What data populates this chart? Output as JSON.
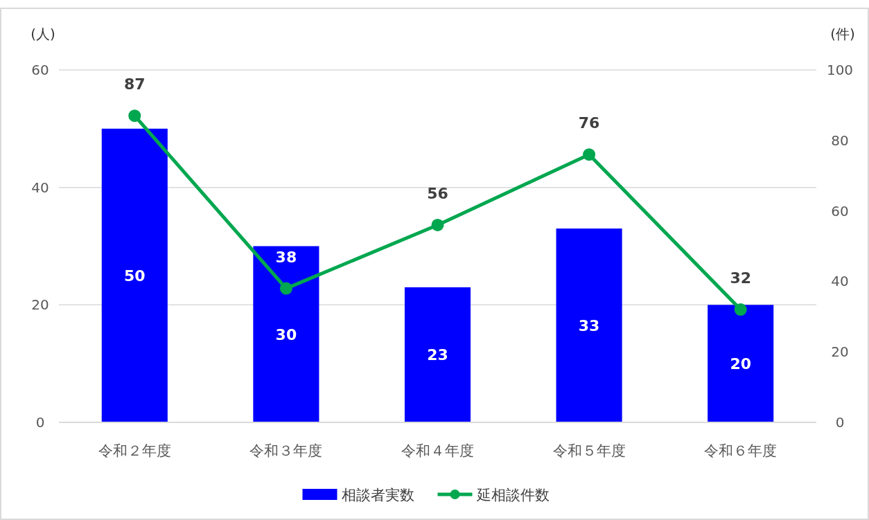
{
  "chart_data": {
    "type": "bar",
    "categories": [
      "令和２年度",
      "令和３年度",
      "令和４年度",
      "令和５年度",
      "令和６年度"
    ],
    "series": [
      {
        "name": "相談者実数",
        "color": "#0000ff",
        "values": [
          50,
          30,
          23,
          33,
          20
        ]
      },
      {
        "name": "延相談件数",
        "type": "line",
        "axis": "y2",
        "color": "#00a74f",
        "values": [
          87,
          38,
          56,
          76,
          32
        ]
      }
    ],
    "ylabel": "(人)",
    "y2label": "(件)",
    "ylim": [
      0,
      60
    ],
    "yticks": [
      0,
      20,
      40,
      60
    ],
    "y2lim": [
      0,
      100
    ],
    "y2ticks": [
      0,
      20,
      40,
      60,
      80,
      100
    ],
    "grid": "y",
    "legend": "bottom",
    "marker": "circle",
    "data_labels": true
  }
}
